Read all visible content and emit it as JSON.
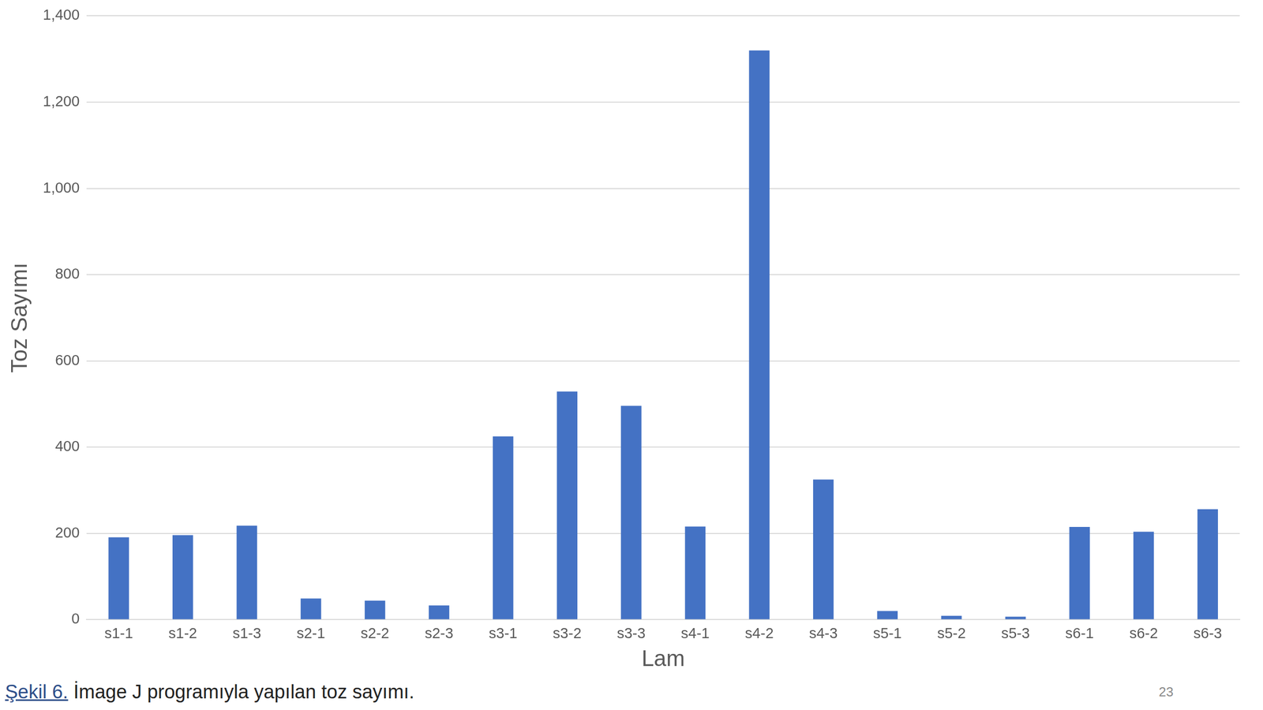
{
  "chart_data": {
    "type": "bar",
    "caption": "Şekil 6. İmage J programıyla yapılan toz sayımı.",
    "annotations": [
      "23"
    ],
    "x_label": "Lam",
    "y_label": "Toz Sayımı",
    "categories": [
      "s1-1",
      "s1-2",
      "s1-3",
      "s2-1",
      "s2-2",
      "s2-3",
      "s3-1",
      "s3-2",
      "s3-3",
      "s4-1",
      "s4-2",
      "s4-3",
      "s5-1",
      "s5-2",
      "s5-3",
      "s6-1",
      "s6-2",
      "s6-3"
    ],
    "values": [
      191,
      196,
      218,
      49,
      44,
      33,
      425,
      529,
      496,
      216,
      1320,
      325,
      20,
      9,
      7,
      215,
      204,
      256
    ],
    "color": "#4472c4",
    "ylim": [
      0,
      1400
    ],
    "yticks": [
      0,
      200,
      400,
      600,
      800,
      1000,
      1200,
      1400
    ],
    "grid": true
  }
}
